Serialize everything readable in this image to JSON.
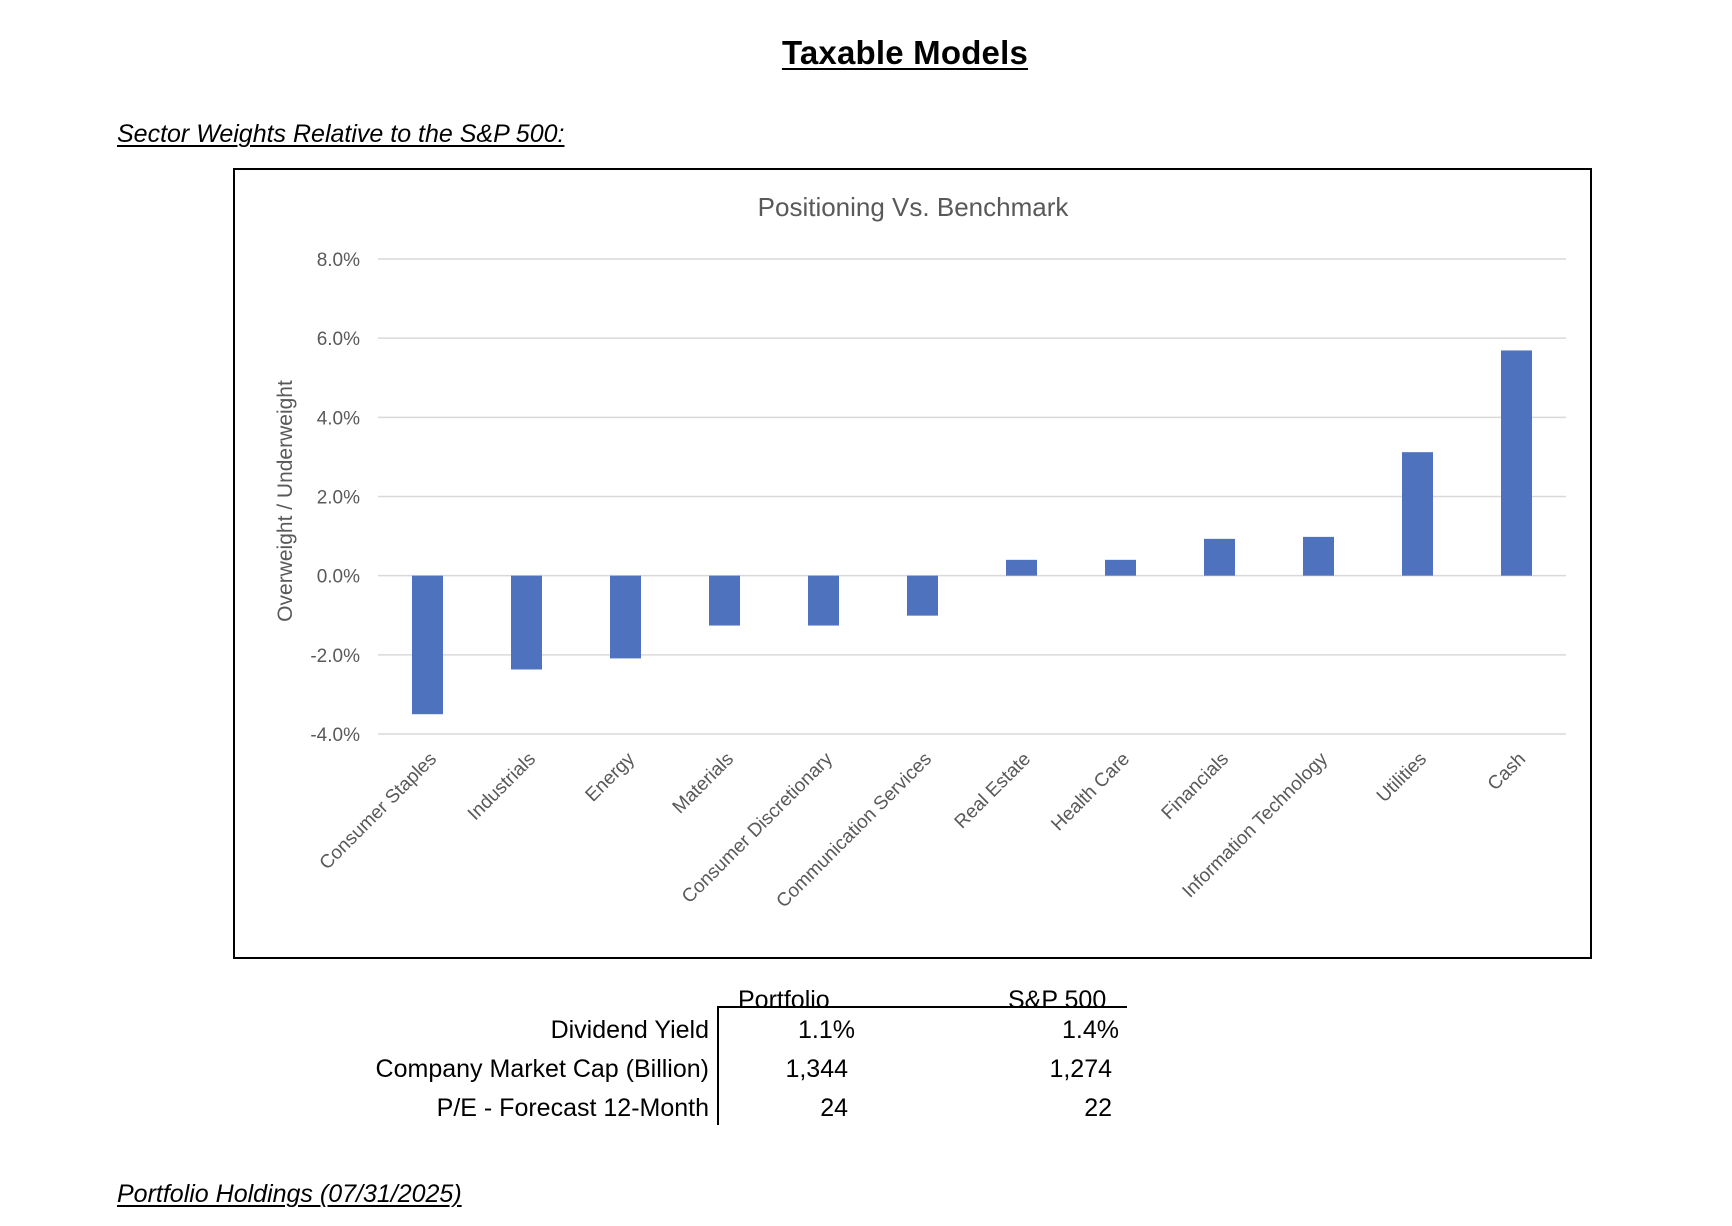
{
  "page": {
    "title": "Taxable Models",
    "section_sector": "Sector Weights Relative to the S&P 500:",
    "section_holdings": "Portfolio Holdings (07/31/2025)"
  },
  "chart_data": {
    "type": "bar",
    "title": "Positioning Vs. Benchmark",
    "xlabel": "",
    "ylabel": "Overweight / Underweight",
    "categories": [
      "Consumer Staples",
      "Industrials",
      "Energy",
      "Materials",
      "Consumer Discretionary",
      "Communication Services",
      "Real Estate",
      "Health Care",
      "Financials",
      "Information Technology",
      "Utilities",
      "Cash"
    ],
    "values": [
      -3.5,
      -2.37,
      -2.09,
      -1.26,
      -1.26,
      -1.01,
      0.4,
      0.4,
      0.93,
      0.98,
      3.12,
      5.69
    ],
    "value_unit": "%",
    "ylim": [
      -4,
      8
    ],
    "yticks": [
      -4,
      -2,
      0,
      2,
      4,
      6,
      8
    ],
    "ytick_labels": [
      "-4.0%",
      "-2.0%",
      "0.0%",
      "2.0%",
      "4.0%",
      "6.0%",
      "8.0%"
    ],
    "grid": true,
    "legend": "none",
    "colors": {
      "bar": "#4f72be",
      "grid": "#d9d9d9",
      "text": "#595959"
    }
  },
  "stats_table": {
    "columns": [
      "Portfolio",
      "S&P 500"
    ],
    "rows": [
      {
        "label": "Dividend Yield",
        "portfolio": "1.1%",
        "sp500": "1.4%"
      },
      {
        "label": "Company Market Cap (Billion)",
        "portfolio": "1,344",
        "sp500": "1,274"
      },
      {
        "label": "P/E - Forecast 12-Month",
        "portfolio": "24",
        "sp500": "22"
      }
    ]
  }
}
